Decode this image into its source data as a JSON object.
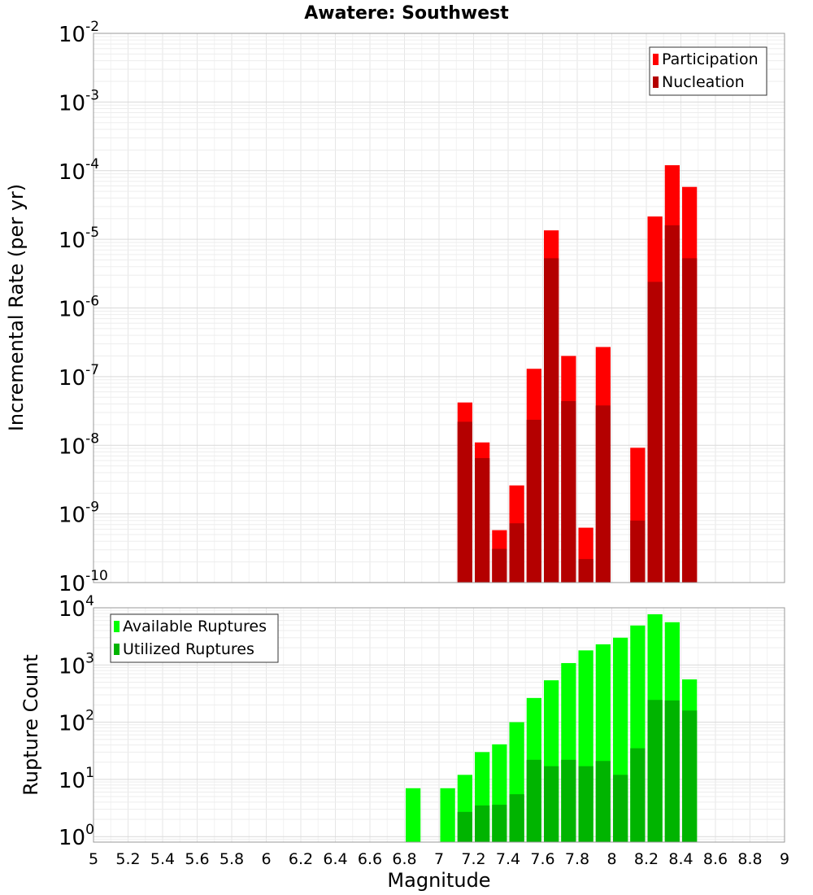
{
  "chart_data": [
    {
      "type": "bar",
      "title": "Awatere: Southwest",
      "ylabel": "Incremental Rate (per yr)",
      "yscale": "log",
      "ylim": [
        1e-10,
        0.01
      ],
      "xlim": [
        5,
        9
      ],
      "grid": true,
      "legend_position": "top-right",
      "x": [
        7.15,
        7.25,
        7.35,
        7.45,
        7.55,
        7.65,
        7.75,
        7.85,
        7.95,
        8.15,
        8.25,
        8.35,
        8.45
      ],
      "series": [
        {
          "name": "Participation",
          "color": "#ff0000",
          "values": [
            4.2e-08,
            1.1e-08,
            5.8e-10,
            2.6e-09,
            1.3e-07,
            1.35e-05,
            2e-07,
            6.3e-10,
            2.7e-07,
            9.2e-09,
            2.15e-05,
            0.00012,
            5.8e-05
          ]
        },
        {
          "name": "Nucleation",
          "color": "#b40000",
          "values": [
            2.2e-08,
            6.5e-09,
            3.1e-10,
            7.3e-10,
            2.35e-08,
            5.3e-06,
            4.4e-08,
            2.2e-10,
            3.8e-08,
            8e-10,
            2.4e-06,
            1.6e-05,
            5.3e-06
          ]
        }
      ],
      "y_ticks": [
        {
          "base": "10",
          "exp": "-10",
          "value": 1e-10
        },
        {
          "base": "10",
          "exp": "-9",
          "value": 1e-09
        },
        {
          "base": "10",
          "exp": "-8",
          "value": 1e-08
        },
        {
          "base": "10",
          "exp": "-7",
          "value": 1e-07
        },
        {
          "base": "10",
          "exp": "-6",
          "value": 1e-06
        },
        {
          "base": "10",
          "exp": "-5",
          "value": 1e-05
        },
        {
          "base": "10",
          "exp": "-4",
          "value": 0.0001
        },
        {
          "base": "10",
          "exp": "-3",
          "value": 0.001
        },
        {
          "base": "10",
          "exp": "-2",
          "value": 0.01
        }
      ]
    },
    {
      "type": "bar",
      "xlabel": "Magnitude",
      "ylabel": "Rupture Count",
      "yscale": "log",
      "ylim": [
        0.8,
        10000
      ],
      "xlim": [
        5,
        9
      ],
      "grid": true,
      "legend_position": "top-left",
      "x": [
        6.85,
        7.05,
        7.15,
        7.25,
        7.35,
        7.45,
        7.55,
        7.65,
        7.75,
        7.85,
        7.95,
        8.05,
        8.15,
        8.25,
        8.35,
        8.45
      ],
      "series": [
        {
          "name": "Available Ruptures",
          "color": "#00ff00",
          "values": [
            7,
            7,
            12,
            30,
            41,
            100,
            265,
            540,
            1080,
            1800,
            2300,
            3000,
            4900,
            7700,
            5600,
            560
          ]
        },
        {
          "name": "Utilized Ruptures",
          "color": "#00b400",
          "values": [
            0,
            0,
            2.7,
            3.5,
            3.6,
            5.5,
            22,
            17,
            22,
            17,
            21,
            12,
            35,
            245,
            240,
            160
          ]
        }
      ],
      "y_ticks": [
        {
          "base": "10",
          "exp": "0",
          "value": 1
        },
        {
          "base": "10",
          "exp": "1",
          "value": 10
        },
        {
          "base": "10",
          "exp": "2",
          "value": 100
        },
        {
          "base": "10",
          "exp": "3",
          "value": 1000
        },
        {
          "base": "10",
          "exp": "4",
          "value": 10000
        }
      ],
      "x_ticks": [
        "5",
        "5.2",
        "5.4",
        "5.6",
        "5.8",
        "6",
        "6.2",
        "6.4",
        "6.6",
        "6.8",
        "7",
        "7.2",
        "7.4",
        "7.6",
        "7.8",
        "8",
        "8.2",
        "8.4",
        "8.6",
        "8.8",
        "9"
      ]
    }
  ]
}
